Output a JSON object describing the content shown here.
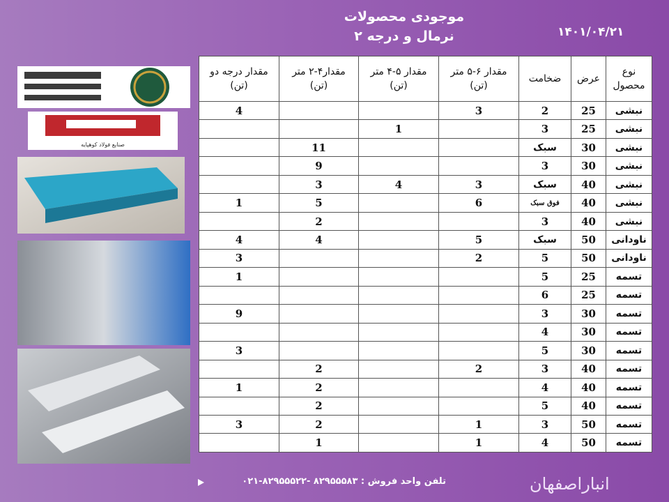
{
  "header": {
    "title": "موجودی محصولات",
    "subtitle": "نرمال و درجه ۲",
    "date": "۱۴۰۱/۰۴/۲۱"
  },
  "logos": {
    "second_caption": "صنایع فولاد کوهپایه"
  },
  "table": {
    "columns": [
      [
        "نوع",
        "محصول"
      ],
      [
        "عرض"
      ],
      [
        "ضخامت"
      ],
      [
        "مقدار ۶-۵ متر",
        "(تن)"
      ],
      [
        "مقدار ۵-۴ متر",
        "(تن)"
      ],
      [
        "مقدار۴-۲ متر",
        "(تن)"
      ],
      [
        "مقدار درجه دو",
        "(تن)"
      ]
    ],
    "rows": [
      [
        "نبشی",
        25,
        2,
        3,
        null,
        null,
        4
      ],
      [
        "نبشی",
        25,
        3,
        null,
        1,
        null,
        null
      ],
      [
        "نبشی",
        30,
        "سبک",
        null,
        null,
        11,
        null
      ],
      [
        "نبشی",
        30,
        3,
        null,
        null,
        9,
        null
      ],
      [
        "نبشی",
        40,
        "سبک",
        3,
        4,
        3,
        null
      ],
      [
        "نبشی",
        40,
        "فوق سبک",
        6,
        null,
        5,
        1
      ],
      [
        "نبشی",
        40,
        3,
        null,
        null,
        2,
        null
      ],
      [
        "ناودانی",
        50,
        "سبک",
        5,
        null,
        4,
        4
      ],
      [
        "ناودانی",
        50,
        5,
        2,
        null,
        null,
        3
      ],
      [
        "تسمه",
        25,
        5,
        null,
        null,
        null,
        1
      ],
      [
        "تسمه",
        25,
        6,
        null,
        null,
        null,
        null
      ],
      [
        "تسمه",
        30,
        3,
        null,
        null,
        null,
        9
      ],
      [
        "تسمه",
        30,
        4,
        null,
        null,
        null,
        null
      ],
      [
        "تسمه",
        30,
        5,
        null,
        null,
        null,
        3
      ],
      [
        "تسمه",
        40,
        3,
        2,
        null,
        2,
        null
      ],
      [
        "تسمه",
        40,
        4,
        null,
        null,
        2,
        1
      ],
      [
        "تسمه",
        40,
        5,
        null,
        null,
        2,
        null
      ],
      [
        "تسمه",
        50,
        3,
        1,
        null,
        2,
        3
      ],
      [
        "تسمه",
        50,
        4,
        1,
        null,
        1,
        null
      ]
    ]
  },
  "footer": {
    "phone": "تلفن واحد فروش : ۸۲۹۵۵۵۸۳ -۸۲۹۵۵۵۲۲-۰۲۱",
    "brand": "انباراصفهان"
  }
}
